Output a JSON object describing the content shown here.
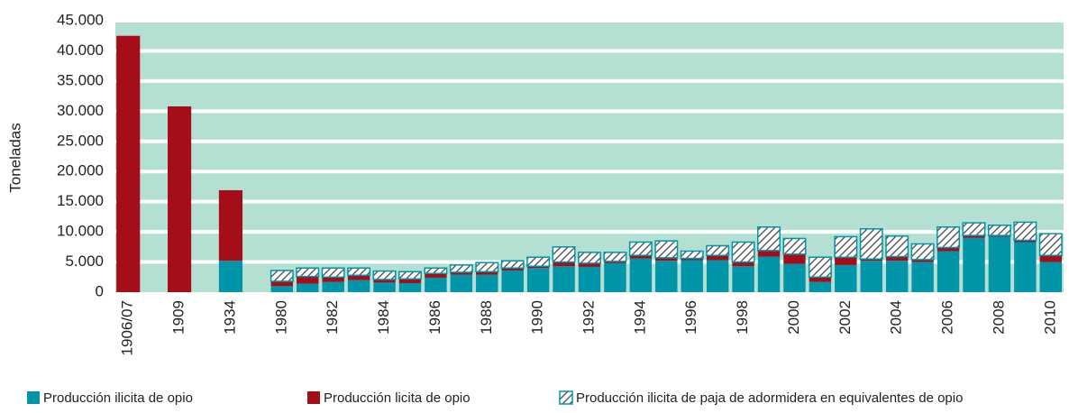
{
  "chart_data": {
    "type": "stacked_bar",
    "y_label": "Toneladas",
    "categories": [
      "1906/07",
      "1909",
      "1934",
      "1980",
      null,
      "1982",
      null,
      "1984",
      null,
      "1986",
      null,
      "1988",
      null,
      "1990",
      null,
      "1992",
      null,
      "1994",
      null,
      "1996",
      null,
      "1998",
      null,
      "2000",
      null,
      "2002",
      null,
      "2004",
      null,
      "2006",
      null,
      "2008",
      null,
      "2010"
    ],
    "series": [
      {
        "name": "Producción ilicita de opio",
        "color": "#0095a8",
        "pattern": "solid",
        "values": [
          null,
          null,
          5200,
          1000,
          1400,
          1700,
          2000,
          1600,
          1500,
          2400,
          2900,
          2900,
          3600,
          4000,
          4300,
          4200,
          4800,
          5600,
          5200,
          5300,
          5300,
          4300,
          5900,
          4700,
          1700,
          4500,
          5200,
          5200,
          5000,
          6800,
          9000,
          9200,
          8300,
          5000
        ]
      },
      {
        "name": "Producción licita de opio",
        "color": "#a50d18",
        "pattern": "solid",
        "values": [
          42500,
          30800,
          11700,
          800,
          1200,
          800,
          800,
          500,
          700,
          700,
          400,
          500,
          400,
          300,
          700,
          600,
          300,
          500,
          500,
          300,
          800,
          700,
          1000,
          1600,
          800,
          1300,
          300,
          700,
          400,
          600,
          400,
          200,
          300,
          1100
        ]
      },
      {
        "name": "Producción ilicita de paja de adormidera en equivalentes de opio",
        "color": "#0095a8",
        "pattern": "hatch",
        "values": [
          null,
          null,
          null,
          1800,
          1400,
          1500,
          1200,
          1400,
          1200,
          900,
          1200,
          1500,
          1200,
          1500,
          2500,
          1800,
          1500,
          2200,
          2800,
          1200,
          1600,
          3300,
          3900,
          2600,
          3300,
          3400,
          5000,
          3400,
          2600,
          3400,
          2100,
          1700,
          3000,
          3600
        ]
      }
    ],
    "ylim": [
      0,
      45000
    ],
    "yticks": [
      0,
      {
        "value": 5000,
        "label": "5.000"
      },
      {
        "value": 10000,
        "label": "10.000"
      },
      {
        "value": 15000,
        "label": "15.000"
      },
      {
        "value": 20000,
        "label": "20.000"
      },
      {
        "value": 25000,
        "label": "25.000"
      },
      {
        "value": 30000,
        "label": "30.000"
      },
      {
        "value": 35000,
        "label": "35.000"
      },
      {
        "value": 40000,
        "label": "40.000"
      },
      {
        "value": 45000,
        "label": "45.000"
      }
    ],
    "grid": true
  }
}
